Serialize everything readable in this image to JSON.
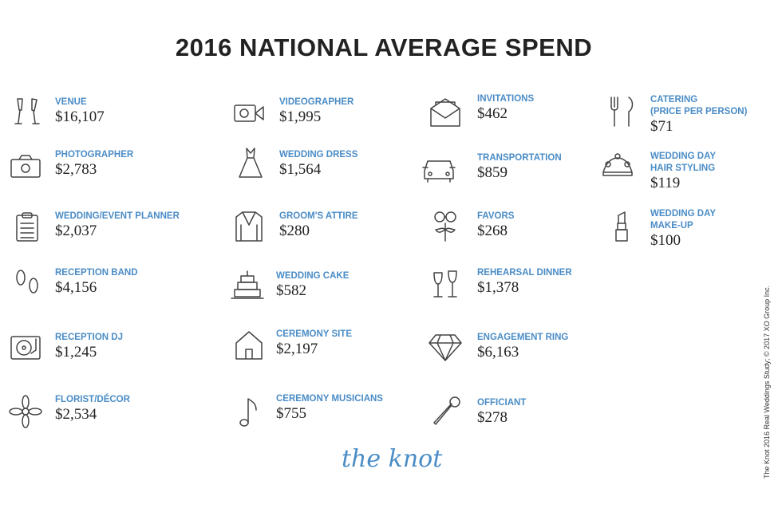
{
  "title": "2016 NATIONAL AVERAGE SPEND",
  "items": [
    {
      "label": "VENUE",
      "amount": "$16,107",
      "icon": "champagne-glasses-icon"
    },
    {
      "label": "PHOTOGRAPHER",
      "amount": "$2,783",
      "icon": "camera-icon"
    },
    {
      "label": "WEDDING/EVENT PLANNER",
      "amount": "$2,037",
      "icon": "clipboard-icon"
    },
    {
      "label": "RECEPTION BAND",
      "amount": "$4,156",
      "icon": "footprints-icon"
    },
    {
      "label": "RECEPTION DJ",
      "amount": "$1,245",
      "icon": "turntable-icon"
    },
    {
      "label": "FLORIST/DÉCOR",
      "amount": "$2,534",
      "icon": "flower-icon"
    },
    {
      "label": "VIDEOGRAPHER",
      "amount": "$1,995",
      "icon": "video-camera-icon"
    },
    {
      "label": "WEDDING DRESS",
      "amount": "$1,564",
      "icon": "dress-icon"
    },
    {
      "label": "GROOM'S ATTIRE",
      "amount": "$280",
      "icon": "suit-jacket-icon"
    },
    {
      "label": "WEDDING CAKE",
      "amount": "$582",
      "icon": "cake-icon"
    },
    {
      "label": "CEREMONY SITE",
      "amount": "$2,197",
      "icon": "house-icon"
    },
    {
      "label": "CEREMONY MUSICIANS",
      "amount": "$755",
      "icon": "music-note-icon"
    },
    {
      "label": "INVITATIONS",
      "amount": "$462",
      "icon": "envelope-icon"
    },
    {
      "label": "TRANSPORTATION",
      "amount": "$859",
      "icon": "car-icon"
    },
    {
      "label": "FAVORS",
      "amount": "$268",
      "icon": "mustache-glasses-icon"
    },
    {
      "label": "REHEARSAL DINNER",
      "amount": "$1,378",
      "icon": "wine-glasses-icon"
    },
    {
      "label": "ENGAGEMENT RING",
      "amount": "$6,163",
      "icon": "diamond-icon"
    },
    {
      "label": "OFFICIANT",
      "amount": "$278",
      "icon": "microphone-icon"
    },
    {
      "label": "CATERING\n(PRICE PER PERSON)",
      "amount": "$71",
      "icon": "fork-knife-icon"
    },
    {
      "label": "WEDDING DAY\nHAIR STYLING",
      "amount": "$119",
      "icon": "tiara-icon"
    },
    {
      "label": "WEDDING DAY\nMAKE-UP",
      "amount": "$100",
      "icon": "lipstick-icon"
    }
  ],
  "logo": "the knot",
  "credit": "The Knot 2016 Real Weddings Study; © 2017 XO Group Inc.",
  "colors": {
    "label": "#4a8cc6",
    "text": "#222222"
  }
}
